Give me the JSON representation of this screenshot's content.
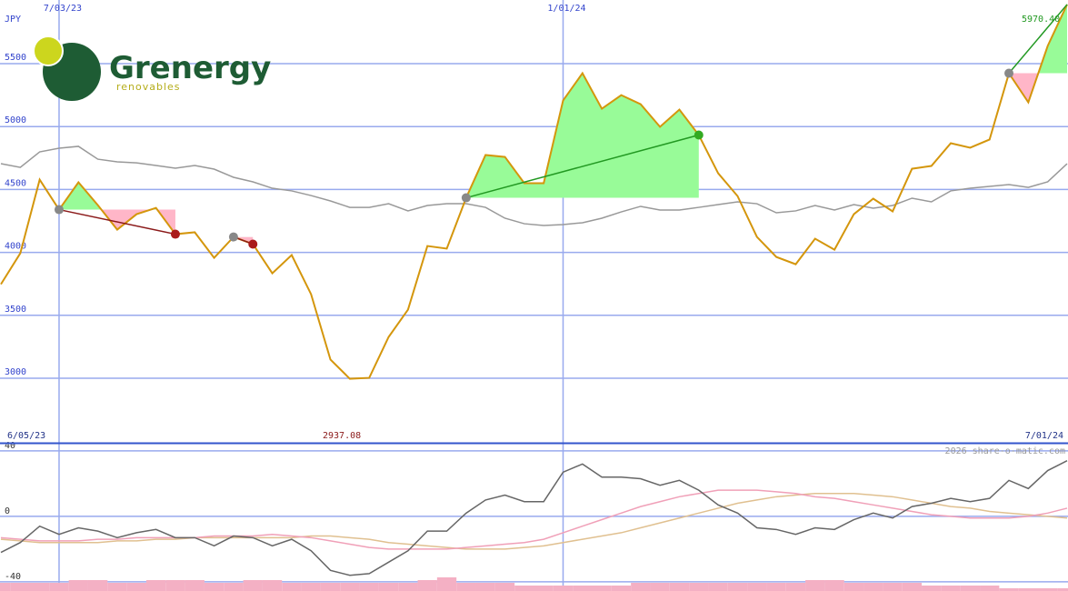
{
  "chart_data": {
    "type": "line",
    "logo": {
      "name": "Grenergy",
      "tagline": "renovables"
    },
    "currency": "JPY",
    "annotations": {
      "high": "5970.40",
      "low": "2937.08"
    },
    "date_range": [
      "6/05/23",
      "7/01/24"
    ],
    "watermark": "2026 share-o-matic.com",
    "xlim": [
      0,
      55
    ],
    "xticks": [
      {
        "value": 3,
        "label": "7/03/23"
      },
      {
        "value": 29,
        "label": "1/01/24"
      }
    ],
    "ylim": [
      2487,
      6006
    ],
    "yticks": [
      3000,
      3500,
      4000,
      4500,
      5000,
      5500
    ],
    "grid": true,
    "series": [
      {
        "name": "Price",
        "color": "#d4960c",
        "values": [
          3747,
          3993,
          4578,
          4340,
          4557,
          4376,
          4181,
          4304,
          4354,
          4145,
          4160,
          3957,
          4123,
          4066,
          3834,
          3979,
          3668,
          3148,
          2996,
          3003,
          3328,
          3545,
          4051,
          4030,
          4434,
          4774,
          4759,
          4550,
          4550,
          5207,
          5424,
          5142,
          5250,
          5178,
          4998,
          5135,
          4933,
          4629,
          4448,
          4123,
          3964,
          3906,
          4109,
          4022,
          4304,
          4427,
          4326,
          4665,
          4687,
          4868,
          4832,
          4897,
          5424,
          5193,
          5641,
          5970.4
        ]
      },
      {
        "name": "Average",
        "color": "#999999",
        "values": [
          4705,
          4676,
          4799,
          4828,
          4843,
          4741,
          4720,
          4712,
          4691,
          4669,
          4691,
          4662,
          4597,
          4561,
          4510,
          4489,
          4452,
          4409,
          4358,
          4358,
          4387,
          4330,
          4373,
          4387,
          4387,
          4358,
          4272,
          4228,
          4214,
          4221,
          4236,
          4272,
          4322,
          4366,
          4337,
          4337,
          4358,
          4380,
          4402,
          4387,
          4315,
          4330,
          4373,
          4337,
          4380,
          4351,
          4373,
          4431,
          4402,
          4489,
          4510,
          4525,
          4539,
          4517,
          4561,
          4705
        ]
      }
    ],
    "trades": [
      {
        "entry": 3,
        "exit": 9,
        "color": "#8b1a1a",
        "open": false
      },
      {
        "entry": 12,
        "exit": 13,
        "color": "#8b1a1a",
        "open": false
      },
      {
        "entry": 24,
        "exit": 36,
        "color": "#229922",
        "open": false
      },
      {
        "entry": 52,
        "exit": 55,
        "color": "#229922",
        "open": true
      }
    ],
    "indicator": {
      "ylim": [
        -45.6,
        44.4
      ],
      "yticks": [
        40,
        0,
        -40
      ],
      "series": [
        {
          "name": "Oscillator",
          "color": "#666666",
          "values": [
            -22,
            -16,
            -6,
            -11,
            -7,
            -9,
            -13,
            -10,
            -8,
            -13,
            -13,
            -18,
            -12,
            -13,
            -18,
            -14,
            -21,
            -33,
            -36,
            -35,
            -28,
            -21,
            -9,
            -9,
            2,
            10,
            13,
            9,
            9,
            27,
            32,
            24,
            24,
            23,
            19,
            22,
            16,
            7,
            2,
            -7,
            -8,
            -11,
            -7,
            -8,
            -2,
            2,
            -1,
            6,
            8,
            11,
            9,
            11,
            22,
            17,
            28,
            34
          ]
        },
        {
          "name": "Fast",
          "color": "#f0a0b8",
          "values": [
            -13,
            -14,
            -15,
            -15,
            -15,
            -14,
            -14,
            -13,
            -13,
            -13,
            -13,
            -12,
            -12,
            -12,
            -11,
            -12,
            -13,
            -15,
            -17,
            -19,
            -20,
            -20,
            -20,
            -20,
            -19,
            -18,
            -17,
            -16,
            -14,
            -10,
            -6,
            -2,
            2,
            6,
            9,
            12,
            14,
            16,
            16,
            16,
            15,
            14,
            12,
            11,
            9,
            7,
            5,
            3,
            1,
            0,
            -1,
            -1,
            -1,
            0,
            2,
            5
          ]
        },
        {
          "name": "Slow",
          "color": "#e0c090",
          "values": [
            -14,
            -15,
            -16,
            -16,
            -16,
            -16,
            -15,
            -15,
            -14,
            -14,
            -13,
            -13,
            -13,
            -13,
            -13,
            -13,
            -12,
            -12,
            -13,
            -14,
            -16,
            -17,
            -18,
            -19,
            -20,
            -20,
            -20,
            -19,
            -18,
            -16,
            -14,
            -12,
            -10,
            -7,
            -4,
            -1,
            2,
            5,
            8,
            10,
            12,
            13,
            14,
            14,
            14,
            13,
            12,
            10,
            8,
            6,
            5,
            3,
            2,
            1,
            0,
            -1
          ]
        }
      ],
      "volume": {
        "color": "#f4b0c4",
        "values": [
          3,
          3,
          3,
          3,
          4,
          4,
          3,
          3,
          4,
          4,
          4,
          3,
          3,
          4,
          4,
          3,
          3,
          3,
          3,
          3,
          3,
          3,
          4,
          5,
          3,
          3,
          3,
          2,
          2,
          2,
          2,
          2,
          2,
          3,
          3,
          3,
          3,
          3,
          3,
          3,
          3,
          3,
          4,
          4,
          3,
          3,
          3,
          3,
          2,
          2,
          2,
          2,
          1,
          1,
          1,
          1
        ]
      }
    }
  }
}
